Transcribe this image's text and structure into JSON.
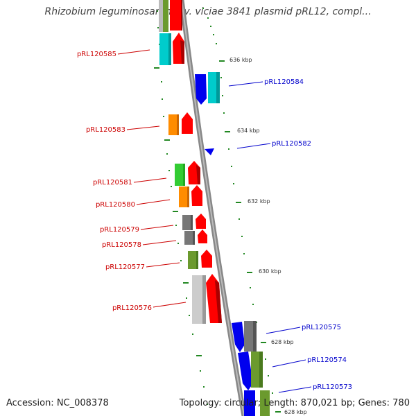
{
  "title": "Rhizobium leguminosarum bv. viciae 3841 plasmid pRL12, compl...",
  "footer": {
    "accession": "Accession: NC_008378",
    "summary": "Topology: circular; Length: 870,021 bp; Genes: 780"
  },
  "colors": {
    "forward_label": "#cc0000",
    "reverse_label": "#0000cc",
    "tick": "#228822",
    "backbone": "#888888"
  },
  "kbp_labels": [
    {
      "label": "636 kbp"
    },
    {
      "label": "634 kbp"
    },
    {
      "label": "632 kbp"
    },
    {
      "label": "630 kbp"
    },
    {
      "label": "628 kbp"
    },
    {
      "label": "628 kbp"
    }
  ],
  "genes_forward": [
    {
      "label": "pRL120585"
    },
    {
      "label": "pRL120583"
    },
    {
      "label": "pRL120581"
    },
    {
      "label": "pRL120580"
    },
    {
      "label": "pRL120579"
    },
    {
      "label": "pRL120578"
    },
    {
      "label": "pRL120577"
    },
    {
      "label": "pRL120576"
    }
  ],
  "genes_reverse": [
    {
      "label": "pRL120584"
    },
    {
      "label": "pRL120582"
    },
    {
      "label": "pRL120575"
    },
    {
      "label": "pRL120574"
    },
    {
      "label": "pRL120573"
    }
  ]
}
